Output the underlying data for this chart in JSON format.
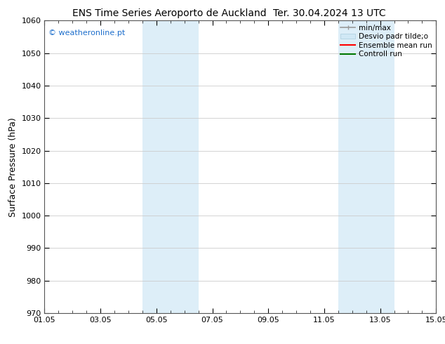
{
  "title_left": "ENS Time Series Aeroporto de Auckland",
  "title_right": "Ter. 30.04.2024 13 UTC",
  "ylabel": "Surface Pressure (hPa)",
  "ylim": [
    970,
    1060
  ],
  "yticks": [
    970,
    980,
    990,
    1000,
    1010,
    1020,
    1030,
    1040,
    1050,
    1060
  ],
  "xlim": [
    0,
    14
  ],
  "xtick_labels": [
    "01.05",
    "03.05",
    "05.05",
    "07.05",
    "09.05",
    "11.05",
    "13.05",
    "15.05"
  ],
  "xtick_positions": [
    0,
    2,
    4,
    6,
    8,
    10,
    12,
    14
  ],
  "shaded_regions": [
    {
      "x_start": 3.5,
      "x_end": 5.5,
      "color": "#ddeef8"
    },
    {
      "x_start": 10.5,
      "x_end": 12.5,
      "color": "#ddeef8"
    }
  ],
  "watermark_text": "© weatheronline.pt",
  "watermark_color": "#1e6fcc",
  "background_color": "#ffffff",
  "grid_color": "#cccccc",
  "title_fontsize": 10,
  "tick_fontsize": 8,
  "ylabel_fontsize": 9,
  "legend_fontsize": 7.5,
  "legend_items": [
    {
      "label": "min/max",
      "color": "#aaaaaa",
      "type": "minmax"
    },
    {
      "label": "Desvio padr tilde;o",
      "color": "#d0e8f5",
      "type": "band"
    },
    {
      "label": "Ensemble mean run",
      "color": "#ff0000",
      "type": "line"
    },
    {
      "label": "Controll run",
      "color": "#007700",
      "type": "line"
    }
  ]
}
